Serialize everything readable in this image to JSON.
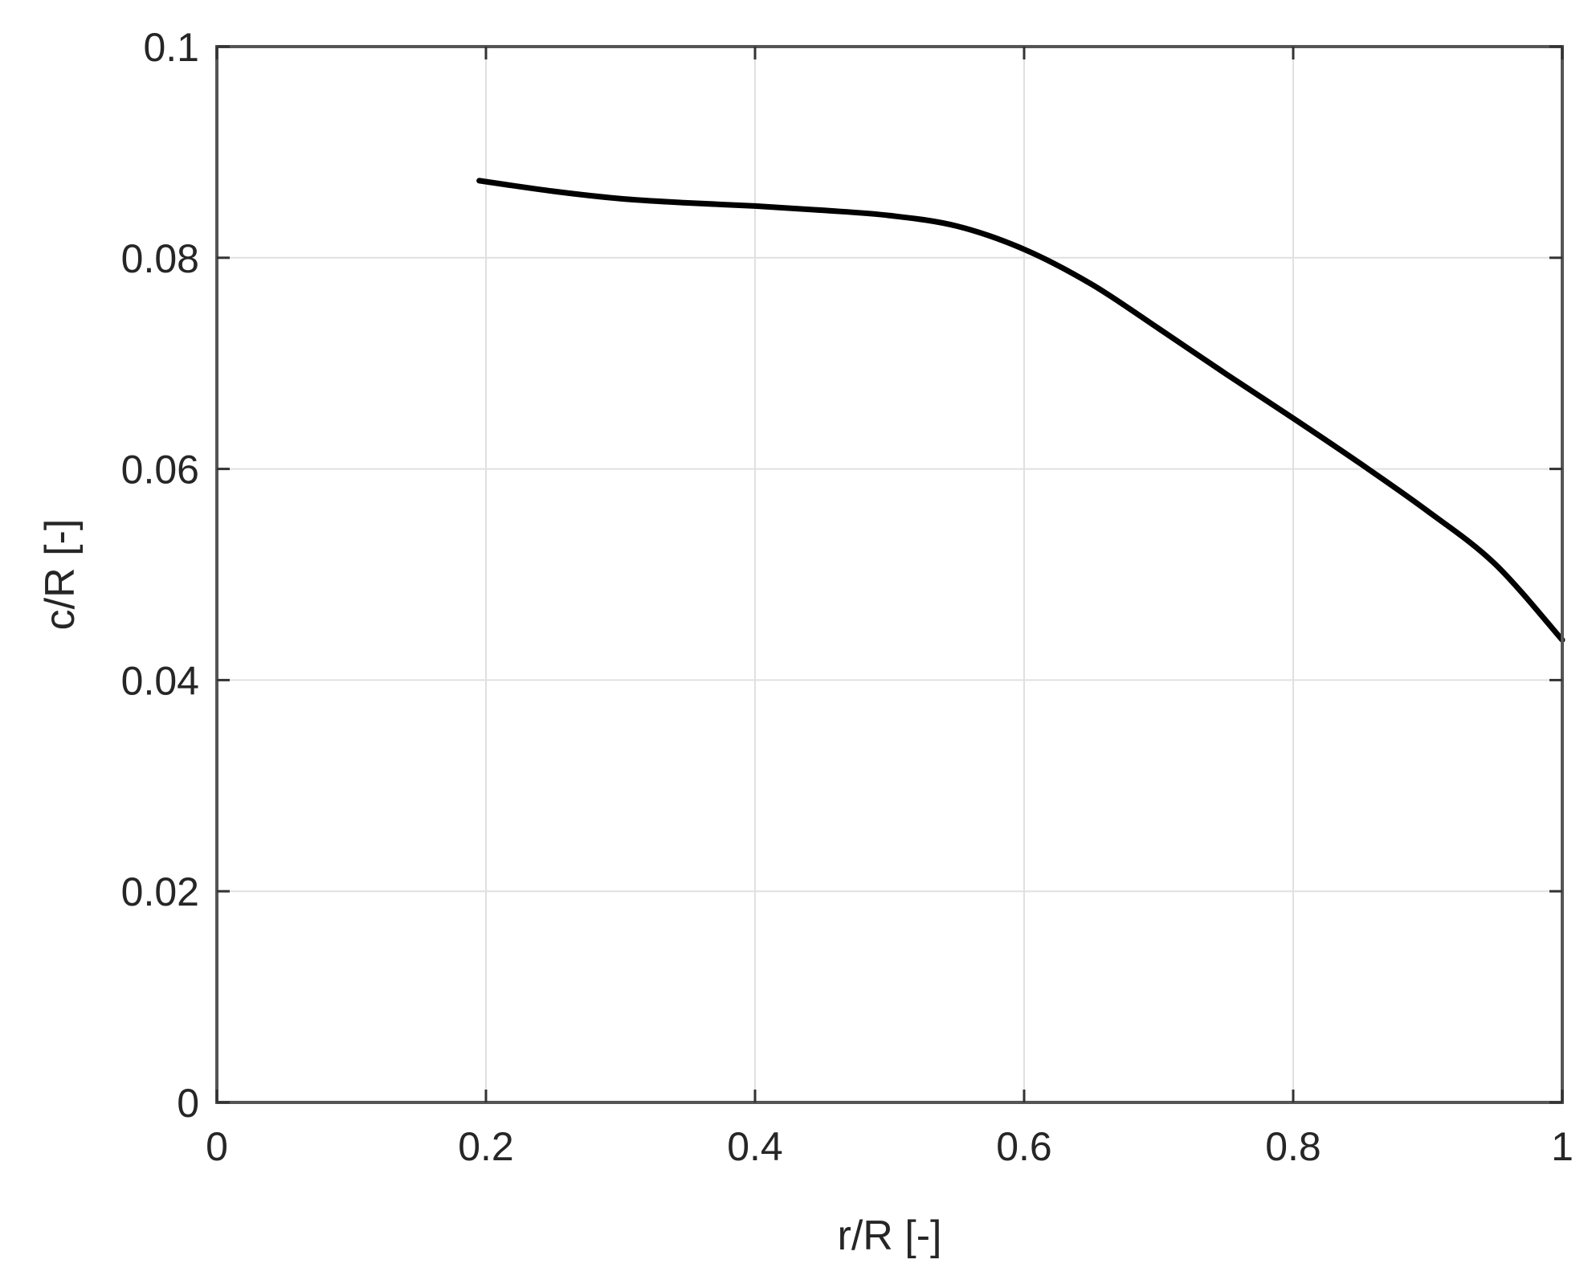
{
  "chart_data": {
    "type": "line",
    "title": "",
    "xlabel": "r/R [-]",
    "ylabel": "c/R [-]",
    "xlim": [
      0,
      1
    ],
    "ylim": [
      0,
      0.1
    ],
    "xticks": [
      0,
      0.2,
      0.4,
      0.6,
      0.8,
      1
    ],
    "xtick_labels": [
      "0",
      "0.2",
      "0.4",
      "0.6",
      "0.8",
      "1"
    ],
    "yticks": [
      0,
      0.02,
      0.04,
      0.06,
      0.08,
      0.1
    ],
    "ytick_labels": [
      "0",
      "0.02",
      "0.04",
      "0.06",
      "0.08",
      "0.1"
    ],
    "grid": true,
    "legend": "none",
    "series": [
      {
        "color": "#000000",
        "x": [
          0.195,
          0.25,
          0.3,
          0.35,
          0.4,
          0.45,
          0.5,
          0.55,
          0.6,
          0.65,
          0.7,
          0.75,
          0.8,
          0.85,
          0.9,
          0.95,
          1.0
        ],
        "y": [
          0.0873,
          0.0863,
          0.0856,
          0.0852,
          0.0849,
          0.0845,
          0.084,
          0.083,
          0.0808,
          0.0775,
          0.0733,
          0.069,
          0.0648,
          0.0605,
          0.056,
          0.051,
          0.0438
        ]
      }
    ]
  }
}
